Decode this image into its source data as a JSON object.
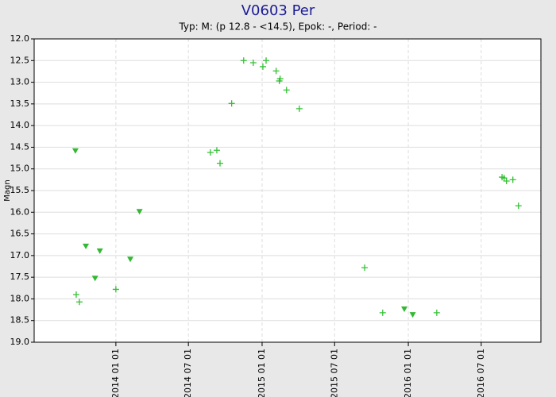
{
  "chart_data": {
    "type": "scatter",
    "title": "V0603 Per",
    "subtitle": "Typ: M: (p 12.8 - <14.5), Epok: -, Period: -",
    "y_label": "Magn",
    "yinvert": true,
    "grid": true,
    "xlim": [
      "2013-06-11",
      "2016-11-27"
    ],
    "xticks": [
      {
        "value": "2014-01-01",
        "label": "2014 01 01"
      },
      {
        "value": "2014-07-01",
        "label": "2014 07 01"
      },
      {
        "value": "2015-01-01",
        "label": "2015 01 01"
      },
      {
        "value": "2015-07-01",
        "label": "2015 07 01"
      },
      {
        "value": "2016-01-01",
        "label": "2016 01 01"
      },
      {
        "value": "2016-07-01",
        "label": "2016 07 01"
      }
    ],
    "ylim": [
      12,
      19
    ],
    "yticks": [
      {
        "value": 12,
        "label": "12.0"
      },
      12.5,
      {
        "value": 13,
        "label": "13.0"
      },
      13.5,
      {
        "value": 14,
        "label": "14.0"
      },
      14.5,
      {
        "value": 15,
        "label": "15.0"
      },
      15.5,
      {
        "value": 16,
        "label": "16.0"
      },
      16.5,
      {
        "value": 17,
        "label": "17.0"
      },
      17.5,
      {
        "value": 18,
        "label": "18.0"
      },
      18.5,
      {
        "value": 19,
        "label": "19.0"
      }
    ],
    "series": [
      {
        "marker": "plus",
        "color": "#33c033",
        "x": [
          "2013-09-24",
          "2013-10-02",
          "2014-01-01",
          "2014-08-25",
          "2014-09-10",
          "2014-09-18",
          "2014-10-17",
          "2014-11-16",
          "2014-12-10",
          "2015-01-03",
          "2015-01-11",
          "2015-02-05",
          "2015-02-13",
          "2015-02-15",
          "2015-03-03",
          "2015-04-04",
          "2015-09-14",
          "2015-10-29",
          "2016-03-12",
          "2016-08-22",
          "2016-08-27",
          "2016-09-02",
          "2016-09-18",
          "2016-10-02"
        ],
        "values": [
          17.9,
          18.07,
          17.78,
          14.62,
          14.57,
          14.87,
          13.49,
          12.5,
          12.55,
          12.64,
          12.5,
          12.74,
          12.97,
          12.92,
          13.18,
          13.61,
          17.28,
          18.32,
          18.32,
          15.19,
          15.21,
          15.28,
          15.25,
          15.85
        ]
      },
      {
        "marker": "triangle-down",
        "color": "#33b833",
        "x": [
          "2013-09-22",
          "2013-10-18",
          "2013-11-10",
          "2013-11-22",
          "2014-02-06",
          "2014-03-01",
          "2015-12-22",
          "2016-01-12"
        ],
        "values": [
          14.58,
          16.78,
          17.52,
          16.89,
          17.08,
          15.98,
          18.23,
          18.36
        ]
      }
    ]
  }
}
